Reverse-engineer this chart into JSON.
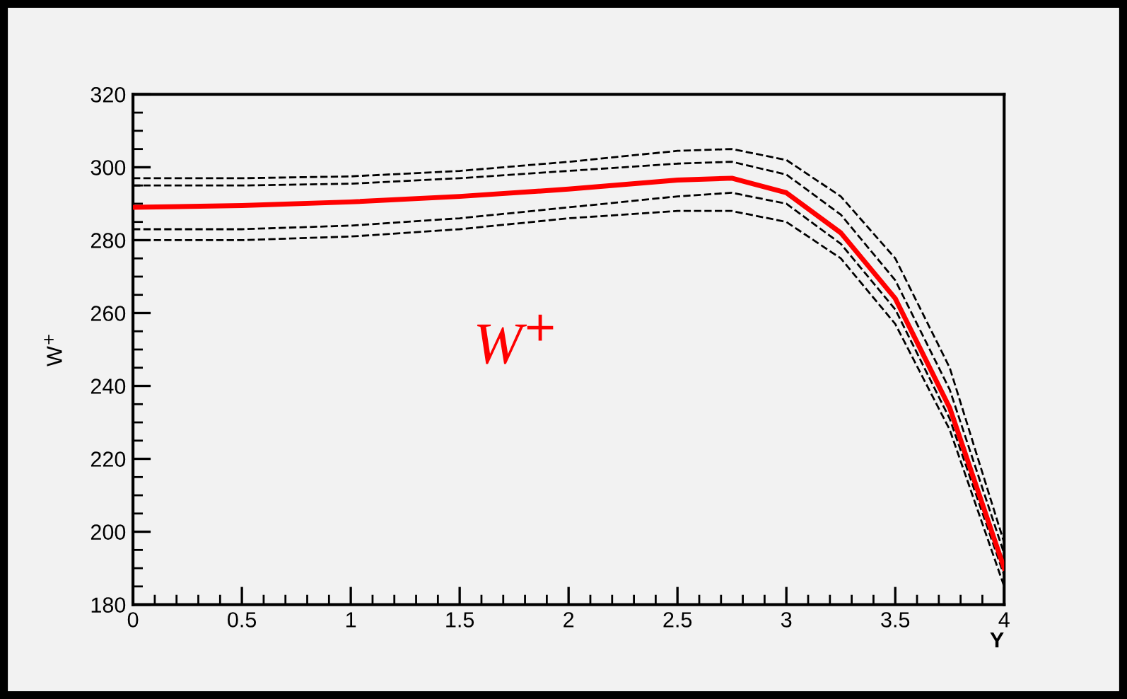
{
  "chart_data": {
    "type": "line",
    "xlabel": "Y",
    "ylabel": "W$^{+}$",
    "xlim": [
      0,
      4
    ],
    "ylim": [
      180,
      320
    ],
    "xticks": [
      0,
      0.5,
      1,
      1.5,
      2,
      2.5,
      3,
      3.5,
      4
    ],
    "yticks": [
      180,
      200,
      220,
      240,
      260,
      280,
      300,
      320
    ],
    "grid": false,
    "legend": false,
    "annotations": [
      "W$^{+}$"
    ],
    "x": [
      0,
      0.5,
      1,
      1.5,
      2,
      2.5,
      2.75,
      3,
      3.25,
      3.5,
      3.75,
      4
    ],
    "series": [
      {
        "color": "#000000",
        "line_style": "dashed",
        "values": [
          297,
          297,
          297.5,
          299,
          301.5,
          304.5,
          305,
          302,
          292,
          275,
          245,
          197
        ]
      },
      {
        "color": "#000000",
        "line_style": "dashed",
        "values": [
          295,
          295,
          295.5,
          297,
          299,
          301,
          301.5,
          298,
          287,
          269,
          239,
          194
        ]
      },
      {
        "color": "#000000",
        "line_style": "dashed",
        "values": [
          283,
          283,
          284,
          286,
          289,
          292,
          293,
          290,
          279,
          261,
          231,
          188
        ]
      },
      {
        "color": "#000000",
        "line_style": "dashed",
        "values": [
          280,
          280,
          281,
          283,
          286,
          288,
          288,
          285,
          275,
          257,
          228,
          185
        ]
      },
      {
        "color": "#ff0000",
        "line_style": "solid",
        "values": [
          289,
          289.5,
          290.5,
          292,
          294,
          296.5,
          297,
          293,
          282,
          264,
          234,
          190
        ]
      }
    ]
  }
}
